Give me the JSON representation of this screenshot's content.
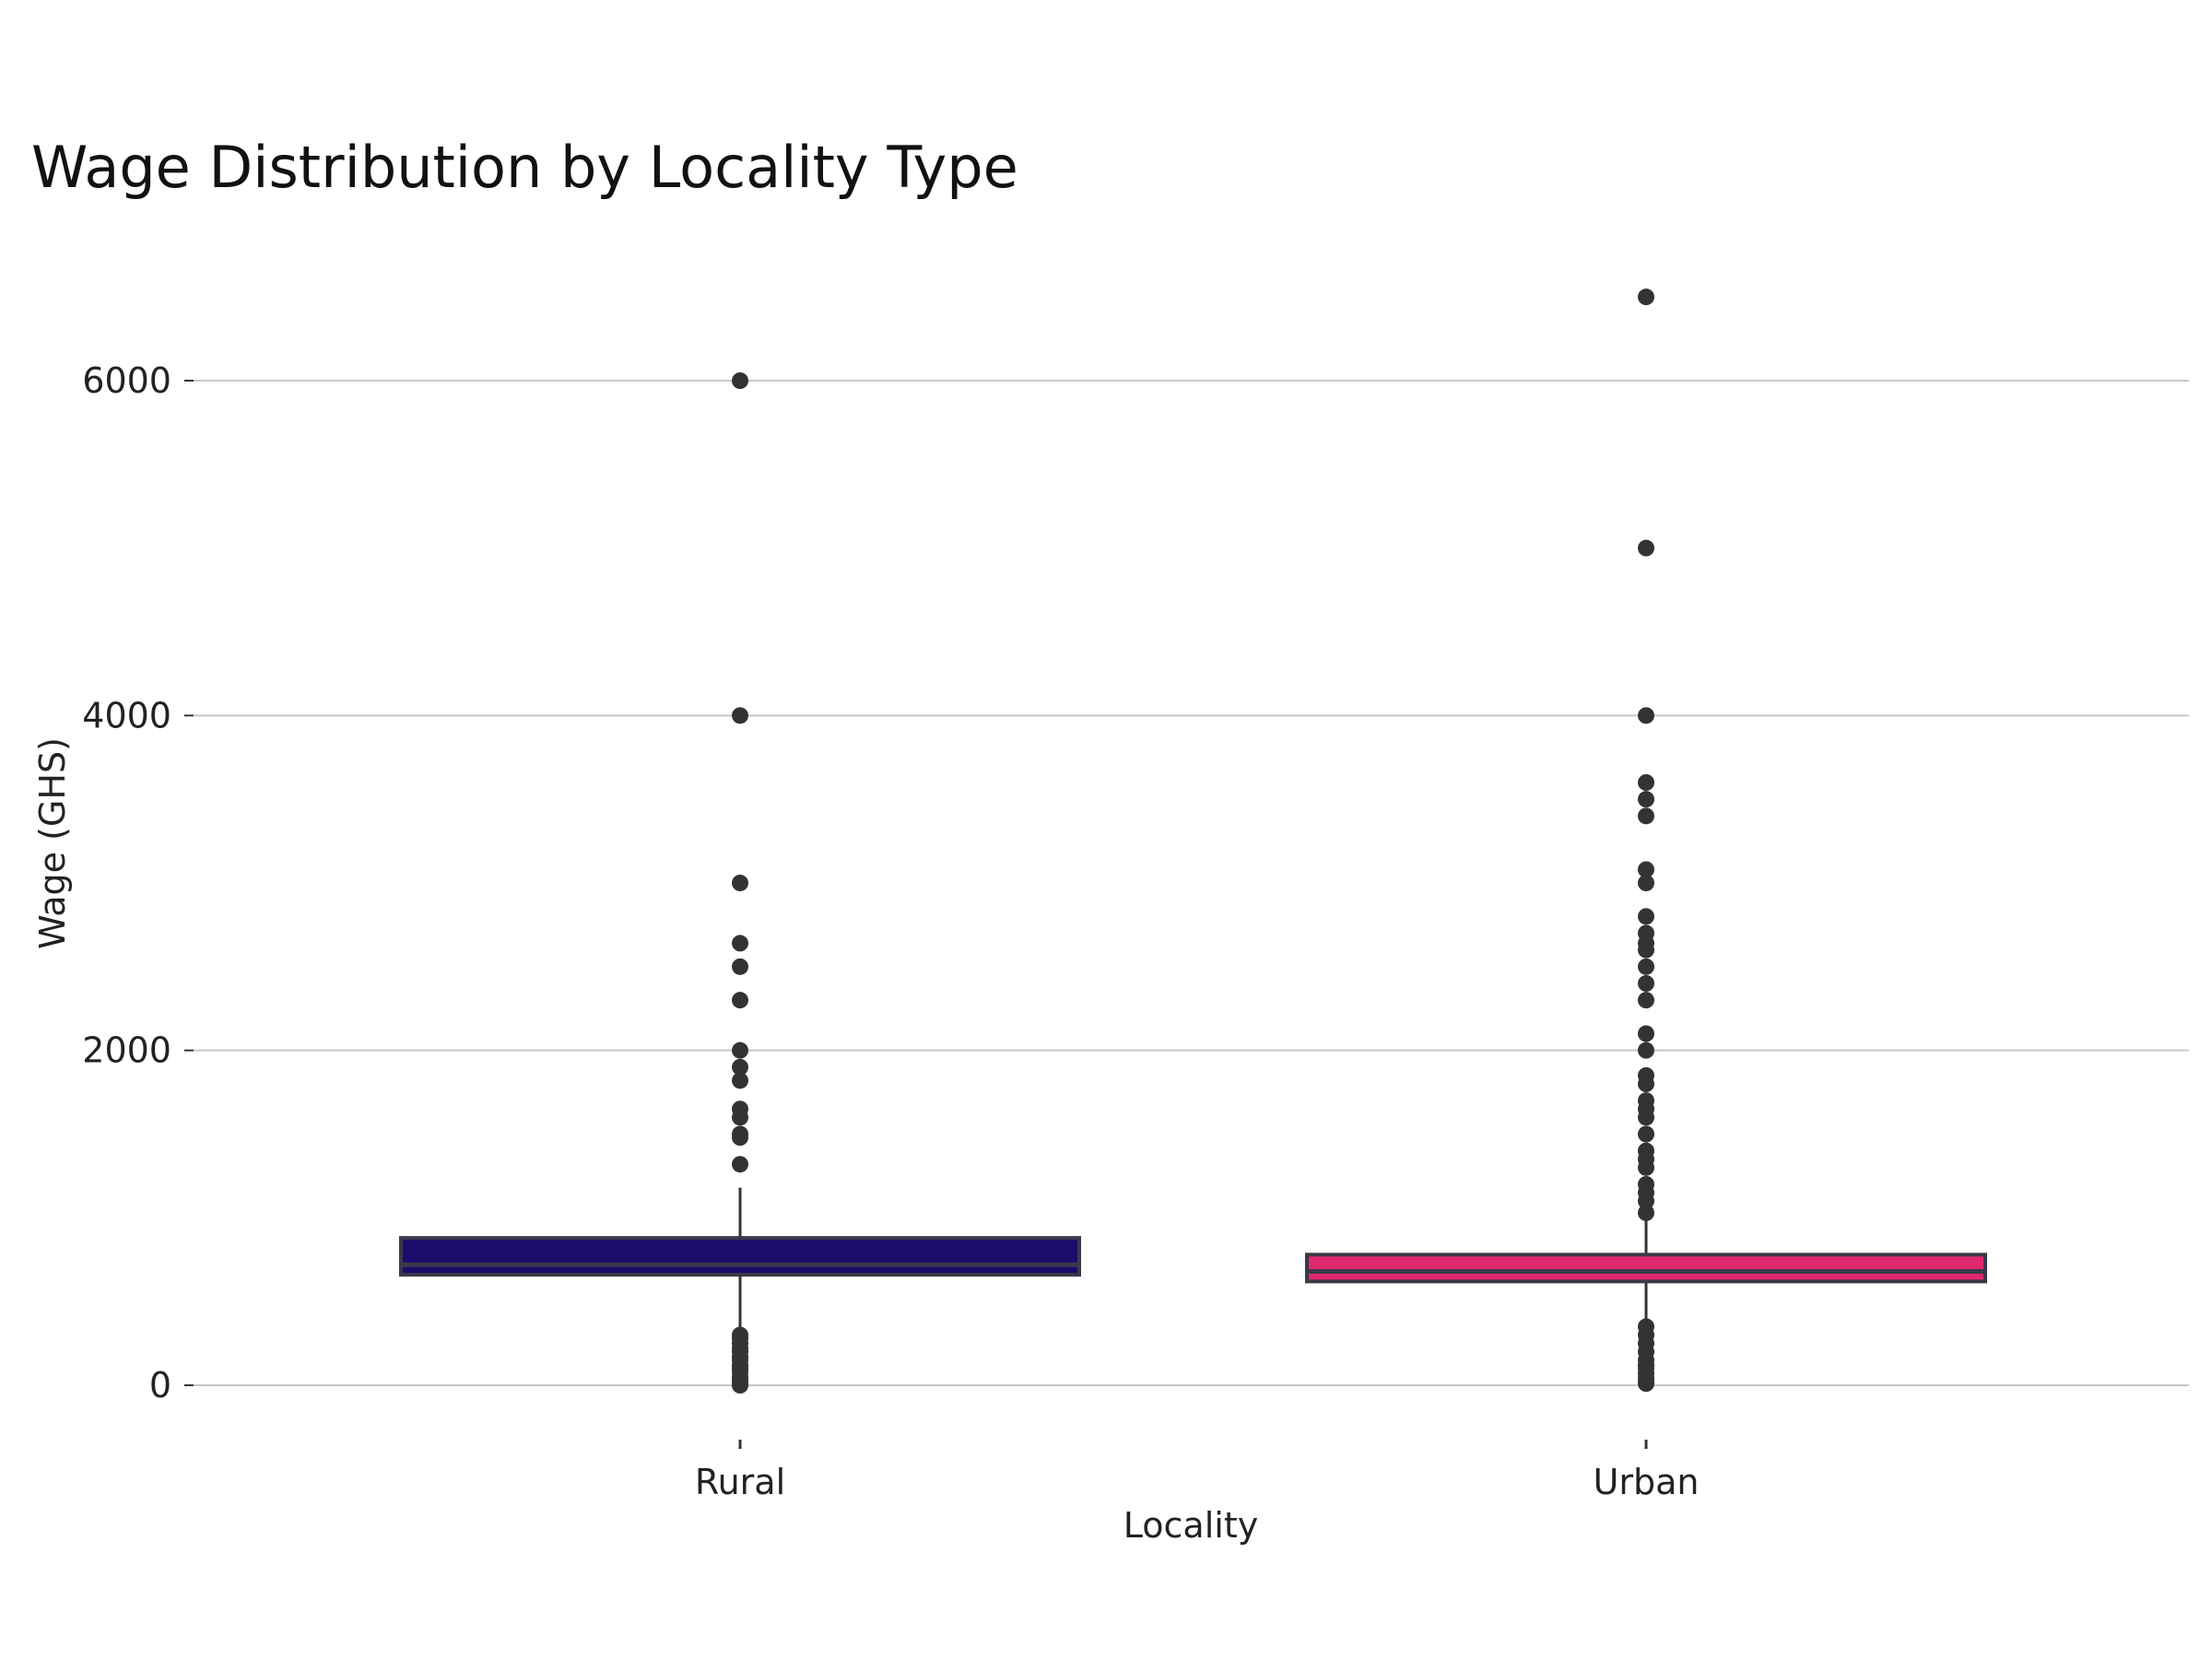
{
  "chart_data": {
    "type": "box",
    "title": "Wage Distribution by Locality Type",
    "xlabel": "Locality",
    "ylabel": "Wage (GHS)",
    "ylim": [
      -350,
      6800
    ],
    "yticks": [
      0,
      2000,
      4000,
      6000
    ],
    "ytick_labels": [
      "0",
      "2000",
      "4000",
      "6000"
    ],
    "grid": "horizontal",
    "categories": [
      "Rural",
      "Urban"
    ],
    "series": [
      {
        "category": "Rural",
        "color": "#1a0c6b",
        "q1": 660,
        "median": 720,
        "q3": 880,
        "whisker_low": 300,
        "whisker_high": 1180,
        "outliers": [
          6000,
          4000,
          3000,
          2640,
          2500,
          2300,
          2000,
          1900,
          1820,
          1650,
          1600,
          1500,
          1480,
          1320,
          300,
          280,
          250,
          220,
          200,
          170,
          150,
          120,
          100,
          80,
          50,
          30,
          10,
          0
        ]
      },
      {
        "category": "Urban",
        "color": "#e0286e",
        "q1": 620,
        "median": 680,
        "q3": 780,
        "whisker_low": 350,
        "whisker_high": 1020,
        "outliers": [
          6500,
          5000,
          4000,
          3600,
          3500,
          3400,
          3080,
          3000,
          2800,
          2700,
          2640,
          2600,
          2500,
          2400,
          2300,
          2100,
          2000,
          1850,
          1800,
          1700,
          1650,
          1600,
          1500,
          1400,
          1350,
          1300,
          1200,
          1150,
          1100,
          1030,
          350,
          300,
          250,
          200,
          150,
          120,
          100,
          70,
          40,
          20,
          10
        ]
      }
    ]
  }
}
